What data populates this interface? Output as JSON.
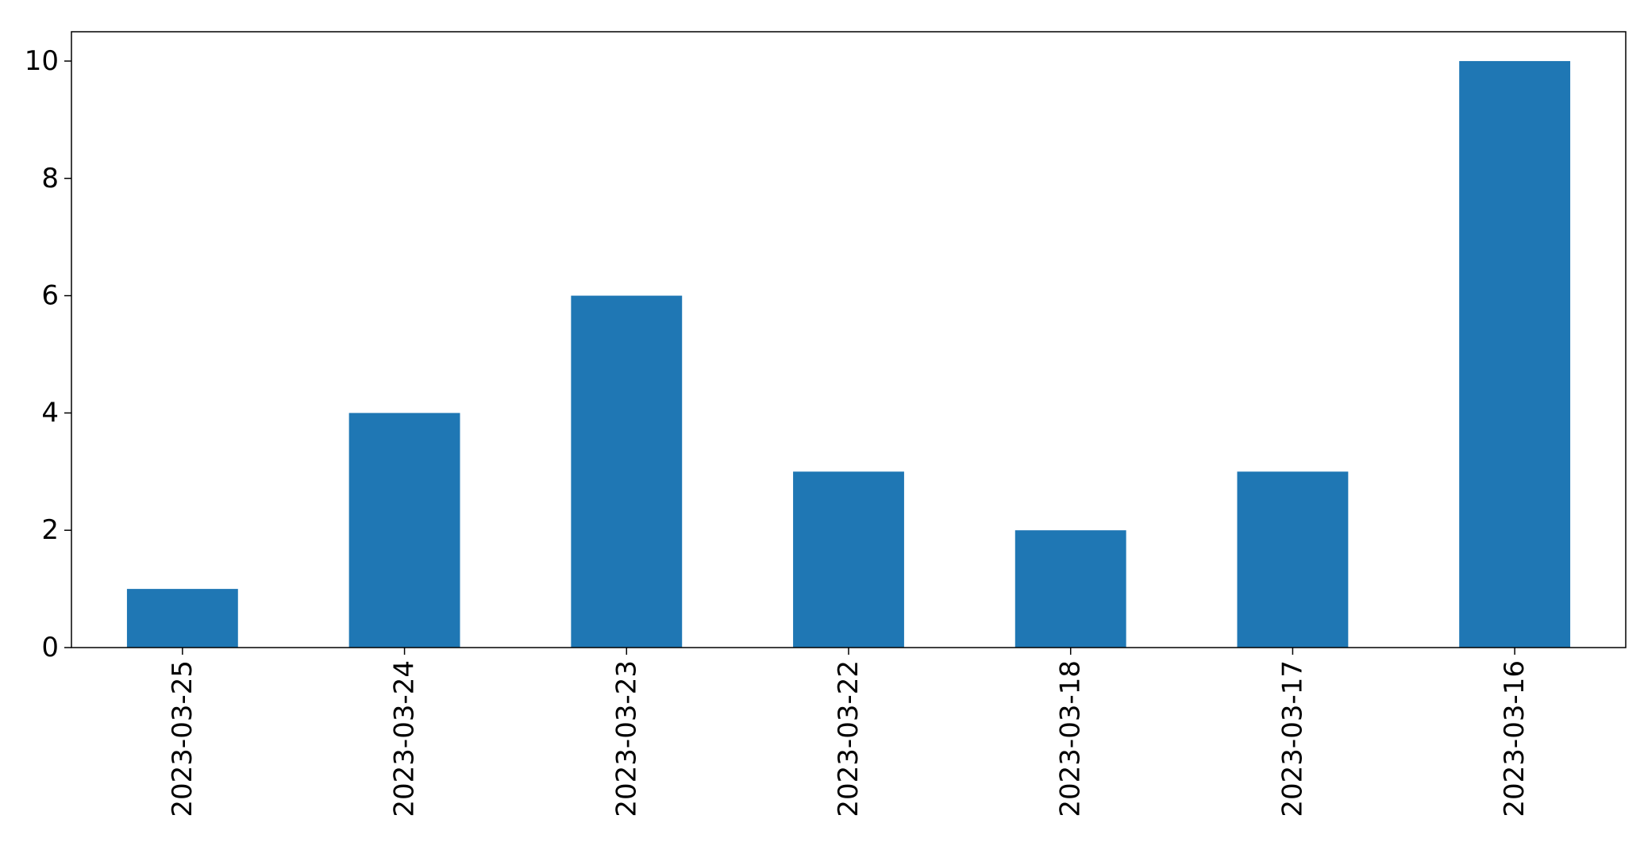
{
  "chart_data": {
    "type": "bar",
    "categories": [
      "2023-03-25",
      "2023-03-24",
      "2023-03-23",
      "2023-03-22",
      "2023-03-18",
      "2023-03-17",
      "2023-03-16"
    ],
    "values": [
      1,
      4,
      6,
      3,
      2,
      3,
      10
    ],
    "title": "",
    "xlabel": "",
    "ylabel": "",
    "ylim": [
      0,
      10.5
    ],
    "yticks": [
      0,
      2,
      4,
      6,
      8,
      10
    ],
    "xtick_rotation": "vertical",
    "grid": false,
    "legend": false,
    "bar_color": "#1f77b4"
  }
}
